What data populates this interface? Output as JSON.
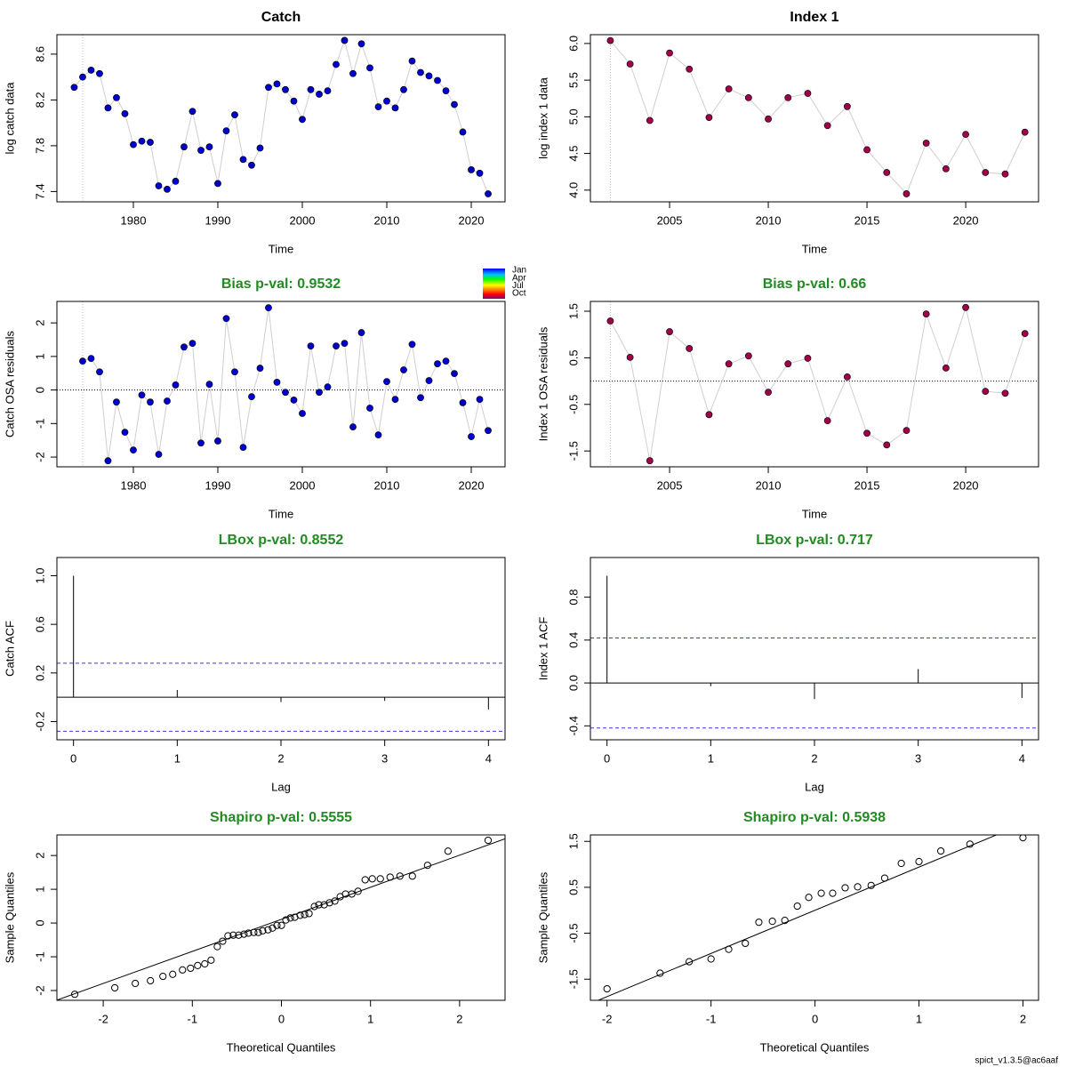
{
  "chart_data": [
    {
      "type": "line",
      "title": "Catch",
      "xlabel": "Time",
      "ylabel": "log catch data",
      "color": "#0000cd",
      "x": [
        1973,
        1974,
        1975,
        1976,
        1977,
        1978,
        1979,
        1980,
        1981,
        1982,
        1983,
        1984,
        1985,
        1986,
        1987,
        1988,
        1989,
        1990,
        1991,
        1992,
        1993,
        1994,
        1995,
        1996,
        1997,
        1998,
        1999,
        2000,
        2001,
        2002,
        2003,
        2004,
        2005,
        2006,
        2007,
        2008,
        2009,
        2010,
        2011,
        2012,
        2013,
        2014,
        2015,
        2016,
        2017,
        2018,
        2019,
        2020,
        2021,
        2022
      ],
      "values": [
        8.31,
        8.4,
        8.46,
        8.43,
        8.13,
        8.22,
        8.08,
        7.81,
        7.84,
        7.83,
        7.45,
        7.42,
        7.49,
        7.79,
        8.1,
        7.76,
        7.79,
        7.47,
        7.93,
        8.07,
        7.68,
        7.63,
        7.78,
        8.31,
        8.34,
        8.29,
        8.19,
        8.03,
        8.29,
        8.25,
        8.28,
        8.51,
        8.72,
        8.43,
        8.69,
        8.48,
        8.14,
        8.19,
        8.13,
        8.29,
        8.54,
        8.44,
        8.41,
        8.37,
        8.28,
        8.16,
        7.92,
        7.59,
        7.56,
        7.38
      ],
      "vline": 1974,
      "xlim": [
        1970.95,
        2024.0
      ],
      "xticks": [
        1980,
        1990,
        2000,
        2010,
        2020
      ],
      "ylim": [
        7.31,
        8.77
      ],
      "yticks": [
        7.4,
        7.8,
        8.2,
        8.6
      ]
    },
    {
      "type": "line",
      "title": "Index 1",
      "xlabel": "Time",
      "ylabel": "log index 1 data",
      "color": "#a0004a",
      "x": [
        2002,
        2003,
        2004,
        2005,
        2006,
        2007,
        2008,
        2009,
        2010,
        2011,
        2012,
        2013,
        2014,
        2015,
        2016,
        2017,
        2018,
        2019,
        2020,
        2021,
        2022,
        2023
      ],
      "values": [
        6.04,
        5.72,
        4.95,
        5.87,
        5.65,
        4.99,
        5.38,
        5.26,
        4.97,
        5.26,
        5.32,
        4.88,
        5.14,
        4.55,
        4.24,
        3.95,
        4.64,
        4.29,
        4.76,
        4.24,
        4.22,
        4.79
      ],
      "vline": 2002,
      "xlim": [
        2000.99,
        2023.69
      ],
      "xticks": [
        2005,
        2010,
        2015,
        2020
      ],
      "ylim": [
        3.84,
        6.12
      ],
      "yticks": [
        {
          "value": 4,
          "label": "4.0"
        },
        4.5,
        {
          "value": 5,
          "label": "5.0"
        },
        5.5,
        {
          "value": 6,
          "label": "6.0"
        }
      ]
    },
    {
      "type": "line",
      "title": "Bias p-val: 0.9532",
      "title_color": "#228b22",
      "xlabel": "Time",
      "ylabel": "Catch OSA residuals",
      "color": "#0000cd",
      "x": [
        1974,
        1975,
        1976,
        1977,
        1978,
        1979,
        1980,
        1981,
        1982,
        1983,
        1984,
        1985,
        1986,
        1987,
        1988,
        1989,
        1990,
        1991,
        1992,
        1993,
        1994,
        1995,
        1996,
        1997,
        1998,
        1999,
        2000,
        2001,
        2002,
        2003,
        2004,
        2005,
        2006,
        2007,
        2008,
        2009,
        2010,
        2011,
        2012,
        2013,
        2014,
        2015,
        2016,
        2017,
        2018,
        2019,
        2020,
        2021,
        2022
      ],
      "values": [
        0.86,
        0.94,
        0.54,
        -2.11,
        -0.36,
        -1.26,
        -1.79,
        -0.15,
        -0.36,
        -1.92,
        -0.33,
        0.15,
        1.28,
        1.39,
        -1.58,
        0.17,
        -1.52,
        2.13,
        0.54,
        -1.71,
        -0.2,
        0.65,
        2.45,
        0.23,
        -0.07,
        -0.3,
        -0.7,
        1.31,
        -0.07,
        0.09,
        1.31,
        1.39,
        -1.1,
        1.71,
        -0.54,
        -1.34,
        0.25,
        -0.28,
        0.6,
        1.36,
        -0.23,
        0.28,
        0.78,
        0.86,
        0.49,
        -0.38,
        -1.39,
        -0.28,
        -1.21
      ],
      "vline": 1974,
      "hline": 0,
      "xlim": [
        1970.95,
        2024.0
      ],
      "xticks": [
        1980,
        1990,
        2000,
        2010,
        2020
      ],
      "ylim": [
        -2.29,
        2.64
      ],
      "yticks": [
        -2,
        -1,
        0,
        1,
        2
      ],
      "season_legend": [
        "Jan",
        "Apr",
        "Jul",
        "Oct"
      ]
    },
    {
      "type": "line",
      "title": "Bias p-val: 0.66",
      "title_color": "#228b22",
      "xlabel": "Time",
      "ylabel": "Index 1 OSA residuals",
      "color": "#a0004a",
      "x": [
        2002,
        2003,
        2004,
        2005,
        2006,
        2007,
        2008,
        2009,
        2010,
        2011,
        2012,
        2013,
        2014,
        2015,
        2016,
        2017,
        2018,
        2019,
        2020,
        2021,
        2022,
        2023
      ],
      "values": [
        1.29,
        0.51,
        -1.71,
        1.06,
        0.7,
        -0.72,
        0.37,
        0.54,
        -0.24,
        0.37,
        0.49,
        -0.85,
        0.09,
        -1.12,
        -1.37,
        -1.06,
        1.44,
        0.28,
        1.58,
        -0.22,
        -0.26,
        1.02
      ],
      "vline": 2002,
      "hline": 0,
      "xlim": [
        2000.99,
        2023.69
      ],
      "xticks": [
        2005,
        2010,
        2015,
        2020
      ],
      "ylim": [
        -1.84,
        1.71
      ],
      "yticks": [
        -1.5,
        -0.5,
        0.5,
        1.5
      ]
    },
    {
      "type": "acf",
      "title": "LBox p-val: 0.8552",
      "title_color": "#228b22",
      "xlabel": "Lag",
      "ylabel": "Catch ACF",
      "x": [
        0,
        1,
        2,
        3,
        4
      ],
      "values": [
        1,
        0.06,
        -0.04,
        -0.03,
        -0.1
      ],
      "ci": 0.28,
      "hline": 0,
      "xlim": [
        -0.16,
        4.16
      ],
      "xticks": [
        0,
        1,
        2,
        3,
        4
      ],
      "ylim": [
        -0.35,
        1.15
      ],
      "yticks": [
        -0.2,
        0.2,
        0.6,
        {
          "value": 1,
          "label": "1.0"
        }
      ]
    },
    {
      "type": "acf",
      "title": "LBox p-val: 0.717",
      "title_color": "#228b22",
      "xlabel": "Lag",
      "ylabel": "Index 1 ACF",
      "x": [
        0,
        1,
        2,
        3,
        4
      ],
      "values": [
        1,
        -0.03,
        -0.15,
        0.13,
        -0.14
      ],
      "ci": 0.42,
      "hline": 0,
      "xlim": [
        -0.16,
        4.16
      ],
      "xticks": [
        0,
        1,
        2,
        3,
        4
      ],
      "ylim": [
        -0.53,
        1.17
      ],
      "yticks": [
        -0.4,
        {
          "value": 0,
          "label": "0.0"
        },
        0.4,
        0.8
      ]
    },
    {
      "type": "qq",
      "title": "Shapiro p-val: 0.5555",
      "title_color": "#228b22",
      "xlabel": "Theoretical Quantiles",
      "ylabel": "Sample Quantiles",
      "x": [
        -2.32,
        -1.87,
        -1.64,
        -1.47,
        -1.33,
        -1.22,
        -1.11,
        -1.02,
        -0.94,
        -0.86,
        -0.79,
        -0.72,
        -0.66,
        -0.6,
        -0.54,
        -0.48,
        -0.42,
        -0.37,
        -0.31,
        -0.26,
        -0.21,
        -0.15,
        -0.1,
        -0.05,
        0,
        0.05,
        0.1,
        0.15,
        0.21,
        0.26,
        0.31,
        0.37,
        0.42,
        0.48,
        0.54,
        0.6,
        0.66,
        0.72,
        0.79,
        0.86,
        0.94,
        1.02,
        1.11,
        1.22,
        1.33,
        1.47,
        1.64,
        1.87,
        2.32
      ],
      "values": [
        -2.11,
        -1.92,
        -1.79,
        -1.71,
        -1.58,
        -1.52,
        -1.39,
        -1.34,
        -1.26,
        -1.21,
        -1.1,
        -0.7,
        -0.54,
        -0.38,
        -0.36,
        -0.36,
        -0.33,
        -0.3,
        -0.28,
        -0.28,
        -0.23,
        -0.2,
        -0.15,
        -0.07,
        -0.07,
        0.09,
        0.15,
        0.17,
        0.23,
        0.25,
        0.28,
        0.49,
        0.54,
        0.54,
        0.6,
        0.65,
        0.78,
        0.86,
        0.86,
        0.94,
        1.28,
        1.31,
        1.31,
        1.36,
        1.39,
        1.39,
        1.71,
        2.13,
        2.45
      ],
      "qqline": {
        "intercept": 0.11,
        "slope": 0.95
      },
      "xlim": [
        -2.52,
        2.51
      ],
      "xticks": [
        -2,
        -1,
        0,
        1,
        2
      ],
      "ylim": [
        -2.29,
        2.61
      ],
      "yticks": [
        -2,
        -1,
        0,
        1,
        2
      ]
    },
    {
      "type": "qq",
      "title": "Shapiro p-val: 0.5938",
      "title_color": "#228b22",
      "xlabel": "Theoretical Quantiles",
      "ylabel": "Sample Quantiles",
      "x": [
        -2.0,
        -1.49,
        -1.21,
        -1.0,
        -0.83,
        -0.67,
        -0.54,
        -0.41,
        -0.29,
        -0.17,
        -0.06,
        0.06,
        0.17,
        0.29,
        0.41,
        0.54,
        0.67,
        0.83,
        1.0,
        1.21,
        1.49,
        2.0
      ],
      "values": [
        -1.71,
        -1.37,
        -1.12,
        -1.06,
        -0.85,
        -0.72,
        -0.26,
        -0.24,
        -0.22,
        0.09,
        0.28,
        0.37,
        0.37,
        0.49,
        0.51,
        0.54,
        0.7,
        1.02,
        1.06,
        1.29,
        1.44,
        1.58
      ],
      "qqline": {
        "intercept": 0,
        "slope": 0.94
      },
      "xlim": [
        -2.16,
        2.15
      ],
      "xticks": [
        -2,
        -1,
        0,
        1,
        2
      ],
      "ylim": [
        -1.96,
        1.64
      ],
      "yticks": [
        -1.5,
        -0.5,
        0.5,
        1.5
      ]
    }
  ],
  "footer": "spict_v1.3.5@ac6aaf"
}
